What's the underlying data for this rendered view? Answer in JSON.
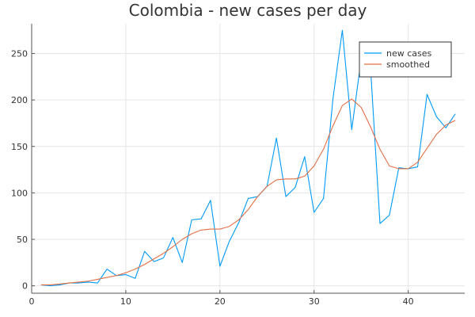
{
  "chart_data": {
    "type": "line",
    "title": "Colombia - new cases per day",
    "xlabel": "",
    "ylabel": "",
    "xlim": [
      0,
      46
    ],
    "ylim": [
      -8,
      282
    ],
    "x_ticks": [
      0,
      10,
      20,
      30,
      40
    ],
    "y_ticks": [
      0,
      50,
      100,
      150,
      200,
      250
    ],
    "grid": true,
    "legend_position": "top-right",
    "x": [
      1,
      2,
      3,
      4,
      5,
      6,
      7,
      8,
      9,
      10,
      11,
      12,
      13,
      14,
      15,
      16,
      17,
      18,
      19,
      20,
      21,
      22,
      23,
      24,
      25,
      26,
      27,
      28,
      29,
      30,
      31,
      32,
      33,
      34,
      35,
      36,
      37,
      38,
      39,
      40,
      41,
      42,
      43,
      44,
      45
    ],
    "series": [
      {
        "name": "new cases",
        "color": "#009AF9",
        "values": [
          1,
          0,
          1,
          3,
          3,
          4,
          3,
          18,
          11,
          12,
          8,
          37,
          26,
          30,
          52,
          25,
          71,
          72,
          92,
          21,
          48,
          68,
          94,
          96,
          107,
          159,
          96,
          106,
          139,
          79,
          94,
          201,
          275,
          168,
          244,
          234,
          67,
          76,
          127,
          126,
          128,
          206,
          182,
          170,
          185
        ]
      },
      {
        "name": "smoothed",
        "color": "#E26F46",
        "values": [
          1,
          1,
          2,
          3,
          4,
          5,
          7,
          9,
          11,
          14,
          18,
          23,
          29,
          35,
          42,
          50,
          56,
          60,
          61,
          61,
          64,
          71,
          82,
          96,
          107,
          114,
          115,
          115,
          118,
          129,
          147,
          172,
          194,
          201,
          192,
          171,
          147,
          129,
          126,
          126,
          133,
          148,
          163,
          173,
          178
        ]
      }
    ]
  }
}
